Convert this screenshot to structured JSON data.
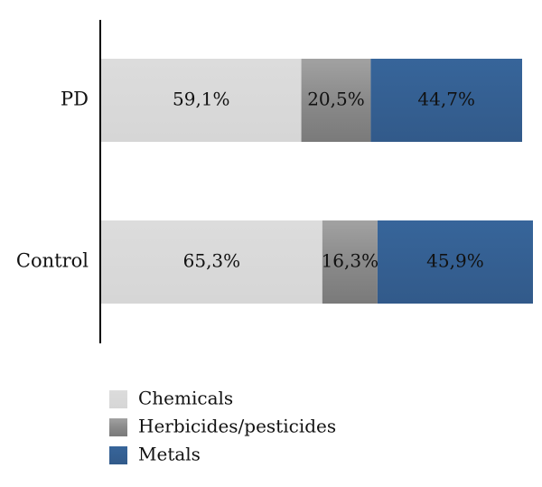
{
  "chart_data": {
    "type": "bar",
    "orientation": "horizontal",
    "stacked": true,
    "categories": [
      "PD",
      "Control"
    ],
    "series": [
      {
        "name": "Chemicals",
        "values": [
          59.1,
          65.3
        ],
        "labels": [
          "59,1%",
          "65,3%"
        ],
        "color": "#d9d9d9"
      },
      {
        "name": "Herbicides/pesticides",
        "values": [
          20.5,
          16.3
        ],
        "labels": [
          "20,5%",
          "16,3%"
        ],
        "color": "#8c8c8c"
      },
      {
        "name": "Metals",
        "values": [
          44.7,
          45.9
        ],
        "labels": [
          "44,7%",
          "45,9%"
        ],
        "color": "#355f92"
      }
    ],
    "xlim": [
      0,
      124.3
    ],
    "grid": false,
    "legend_position": "bottom-left"
  }
}
